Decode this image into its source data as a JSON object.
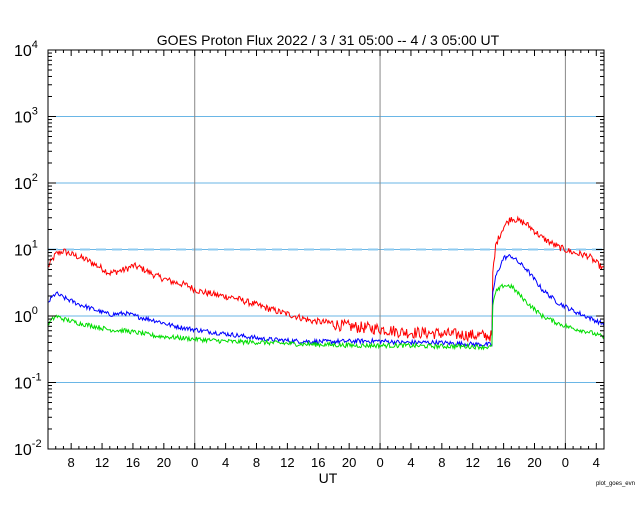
{
  "chart_data": {
    "type": "line",
    "title": "GOES Proton Flux   2022 /  3 / 31   05:00 --  4 /  3   05:00   UT",
    "xlabel": "UT",
    "footer": "plot_goes_evn",
    "yscale": "log",
    "ylim": [
      0.01,
      10000
    ],
    "xlim_hours": [
      0,
      72
    ],
    "y_ticks": [
      {
        "value": 0.01,
        "base": "10",
        "exp": "-2"
      },
      {
        "value": 0.1,
        "base": "10",
        "exp": "-1"
      },
      {
        "value": 1,
        "base": "10",
        "exp": "0"
      },
      {
        "value": 10,
        "base": "10",
        "exp": "1"
      },
      {
        "value": 100,
        "base": "10",
        "exp": "2"
      },
      {
        "value": 1000,
        "base": "10",
        "exp": "3"
      },
      {
        "value": 10000,
        "base": "10",
        "exp": "4"
      }
    ],
    "x_ticks": [
      {
        "hour": 3,
        "label": "8"
      },
      {
        "hour": 7,
        "label": "12"
      },
      {
        "hour": 11,
        "label": "16"
      },
      {
        "hour": 15,
        "label": "20"
      },
      {
        "hour": 19,
        "label": "0"
      },
      {
        "hour": 23,
        "label": "4"
      },
      {
        "hour": 27,
        "label": "8"
      },
      {
        "hour": 31,
        "label": "12"
      },
      {
        "hour": 35,
        "label": "16"
      },
      {
        "hour": 39,
        "label": "20"
      },
      {
        "hour": 43,
        "label": "0"
      },
      {
        "hour": 47,
        "label": "4"
      },
      {
        "hour": 51,
        "label": "8"
      },
      {
        "hour": 55,
        "label": "12"
      },
      {
        "hour": 59,
        "label": "16"
      },
      {
        "hour": 63,
        "label": "20"
      },
      {
        "hour": 67,
        "label": "0"
      },
      {
        "hour": 71,
        "label": "4"
      }
    ],
    "day_boundaries_hours": [
      19,
      43,
      67
    ],
    "gridlines_y": [
      0.1,
      1,
      10,
      100,
      1000
    ],
    "threshold": 10,
    "colors": {
      "red": "#ff0000",
      "blue": "#0000ff",
      "green": "#00dd00",
      "grid": "#6ab6e6",
      "threshold": "#8fcbf0",
      "day_line": "#888888"
    },
    "series": [
      {
        "color": "red",
        "x": [
          0,
          1,
          2,
          3,
          5,
          7,
          8,
          10,
          11,
          12,
          14,
          16,
          18,
          19,
          20,
          22,
          24,
          26,
          28,
          30,
          32,
          34,
          36,
          38,
          40,
          43,
          46,
          50,
          54,
          57.5,
          57.6,
          58,
          59,
          60,
          62,
          64,
          66,
          68,
          70,
          72
        ],
        "y": [
          5.5,
          8.5,
          9.5,
          8.5,
          7,
          5.2,
          4.4,
          5,
          5.7,
          5.3,
          4,
          3.3,
          2.9,
          2.5,
          2.3,
          2.05,
          1.9,
          1.6,
          1.35,
          1.15,
          1.0,
          0.85,
          0.8,
          0.72,
          0.68,
          0.64,
          0.57,
          0.55,
          0.52,
          0.5,
          4,
          12,
          22,
          30,
          24,
          15,
          11,
          9,
          8,
          5
        ]
      },
      {
        "color": "blue",
        "x": [
          0,
          1,
          2,
          4,
          6,
          8,
          10,
          12,
          14,
          16,
          18,
          20,
          24,
          28,
          32,
          36,
          40,
          43,
          46,
          50,
          54,
          57.5,
          57.6,
          58,
          59,
          60,
          62,
          64,
          66,
          68,
          70,
          72
        ],
        "y": [
          1.6,
          2.2,
          1.9,
          1.5,
          1.25,
          1.05,
          1.1,
          0.95,
          0.85,
          0.72,
          0.65,
          0.6,
          0.52,
          0.45,
          0.42,
          0.41,
          0.42,
          0.42,
          0.4,
          0.4,
          0.38,
          0.37,
          2.2,
          4,
          7.5,
          8,
          5,
          2.5,
          1.6,
          1.2,
          0.95,
          0.75
        ]
      },
      {
        "color": "green",
        "x": [
          0,
          1,
          2,
          4,
          6,
          8,
          10,
          12,
          14,
          16,
          20,
          24,
          28,
          32,
          36,
          40,
          43,
          46,
          50,
          54,
          57.5,
          57.6,
          58,
          59,
          60,
          62,
          64,
          66,
          68,
          70,
          72
        ],
        "y": [
          0.75,
          1.0,
          0.9,
          0.78,
          0.7,
          0.62,
          0.6,
          0.55,
          0.5,
          0.48,
          0.44,
          0.41,
          0.4,
          0.38,
          0.37,
          0.36,
          0.36,
          0.36,
          0.35,
          0.35,
          0.34,
          1.5,
          2.3,
          2.9,
          2.8,
          1.6,
          1.0,
          0.78,
          0.65,
          0.58,
          0.48
        ]
      }
    ]
  }
}
